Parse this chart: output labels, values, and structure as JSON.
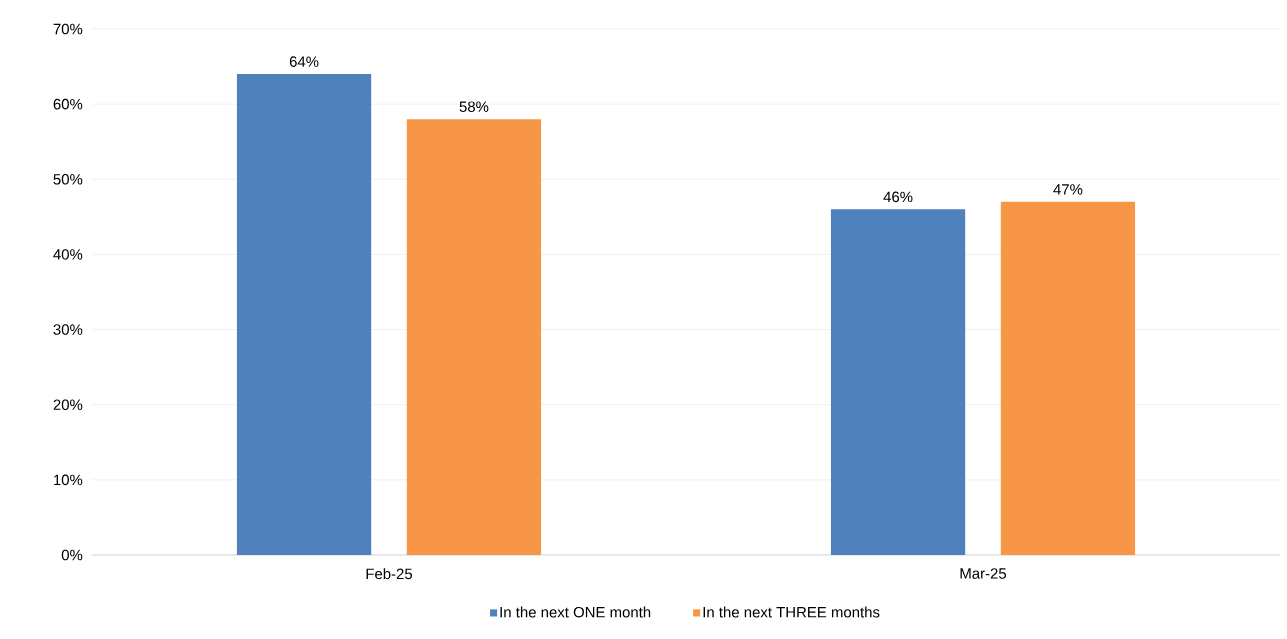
{
  "chart_data": {
    "type": "bar",
    "categories": [
      "Feb-25",
      "Mar-25"
    ],
    "series": [
      {
        "name": "In the next ONE month",
        "color": "#4f81bd",
        "values": [
          64,
          46
        ],
        "value_labels": [
          "64%",
          "46%"
        ]
      },
      {
        "name": "In the next THREE months",
        "color": "#f79646",
        "values": [
          58,
          47
        ],
        "value_labels": [
          "58%",
          "47%"
        ]
      }
    ],
    "ylim": [
      0,
      70
    ],
    "yticks": [
      {
        "value": 0,
        "label": "0%"
      },
      {
        "value": 10,
        "label": "10%"
      },
      {
        "value": 20,
        "label": "20%"
      },
      {
        "value": 30,
        "label": "30%"
      },
      {
        "value": 40,
        "label": "40%"
      },
      {
        "value": 50,
        "label": "50%"
      },
      {
        "value": 60,
        "label": "60%"
      },
      {
        "value": 70,
        "label": "70%"
      }
    ],
    "grid": "y",
    "legend": "bottom"
  }
}
